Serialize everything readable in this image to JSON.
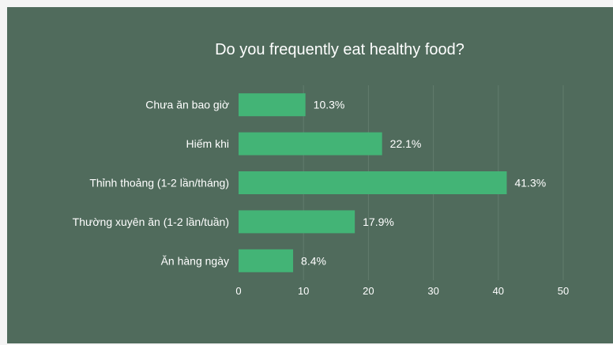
{
  "colors": {
    "background": "#506b5c",
    "frame": "#f4f4f4",
    "bar": "#43b476",
    "grid": "#627c6d",
    "text": "#ffffff"
  },
  "chart_data": {
    "type": "bar",
    "orientation": "horizontal",
    "title": "Do you frequently eat healthy food?",
    "xlabel": "",
    "ylabel": "",
    "xlim": [
      0,
      50
    ],
    "ticks": [
      "0",
      "10",
      "20",
      "30",
      "40",
      "50"
    ],
    "grid": true,
    "legend": "none",
    "categories": [
      "Chưa ăn bao giờ",
      "Hiếm khi",
      "Thỉnh thoảng (1-2 lần/tháng)",
      "Thường xuyên ăn (1-2 lần/tuần)",
      "Ăn hàng ngày"
    ],
    "values": [
      10.3,
      22.1,
      41.3,
      17.9,
      8.4
    ],
    "value_labels": [
      "10.3%",
      "22.1%",
      "41.3%",
      "17.9%",
      "8.4%"
    ]
  }
}
